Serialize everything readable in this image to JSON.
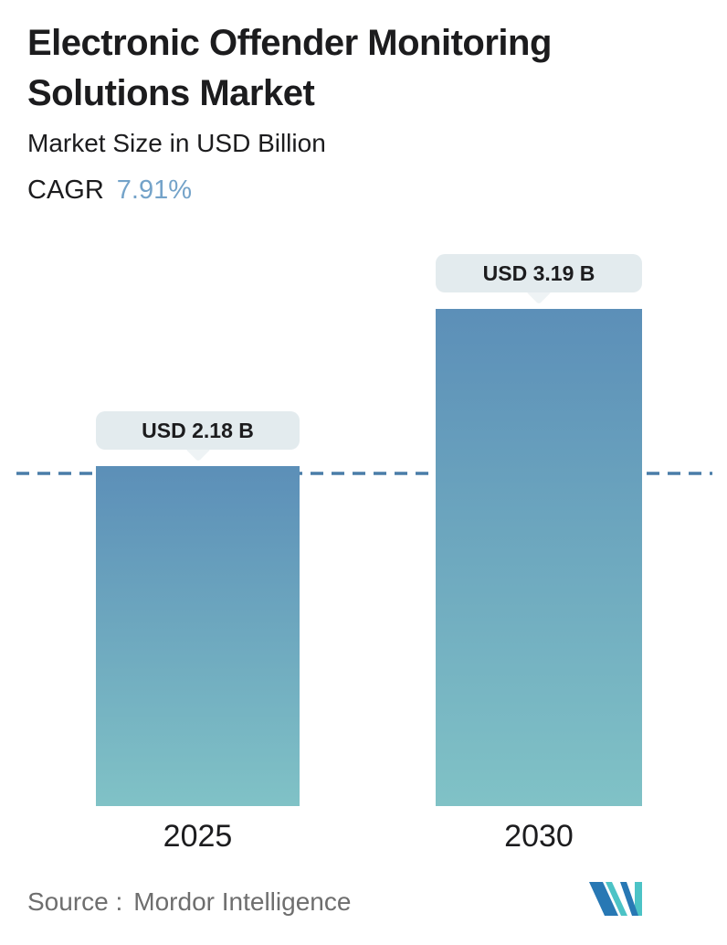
{
  "header": {
    "title_line1": "Electronic Offender Monitoring",
    "title_line2": "Solutions Market",
    "subtitle": "Market Size in USD Billion",
    "cagr_label": "CAGR",
    "cagr_value": "7.91%"
  },
  "chart_data": {
    "type": "bar",
    "title": "Electronic Offender Monitoring Solutions Market",
    "subtitle": "Market Size in USD Billion",
    "cagr": "7.91%",
    "unit": "USD Billion",
    "categories": [
      "2025",
      "2030"
    ],
    "values": [
      2.18,
      3.19
    ],
    "value_labels": [
      "USD 2.18 B",
      "USD 3.19 B"
    ],
    "reference_line_at_value": 2.18,
    "gridlines": false,
    "legend_position": "none",
    "ylim": [
      0,
      3.19
    ]
  },
  "footer": {
    "source_label": "Source :",
    "source_value": "Mordor Intelligence"
  },
  "colors": {
    "text_primary": "#1c1c1e",
    "cagr_accent": "#74a3c9",
    "bar_gradient_top": "#5c8fb8",
    "bar_gradient_bottom": "#80c2c6",
    "dashed_line": "#4a7da8",
    "tooltip_bg": "#e3ebee",
    "tooltip_pointer": "#eef3f5",
    "source_text": "#6e6e6e",
    "logo_blue": "#2878b4",
    "logo_teal": "#4cc3c6"
  }
}
